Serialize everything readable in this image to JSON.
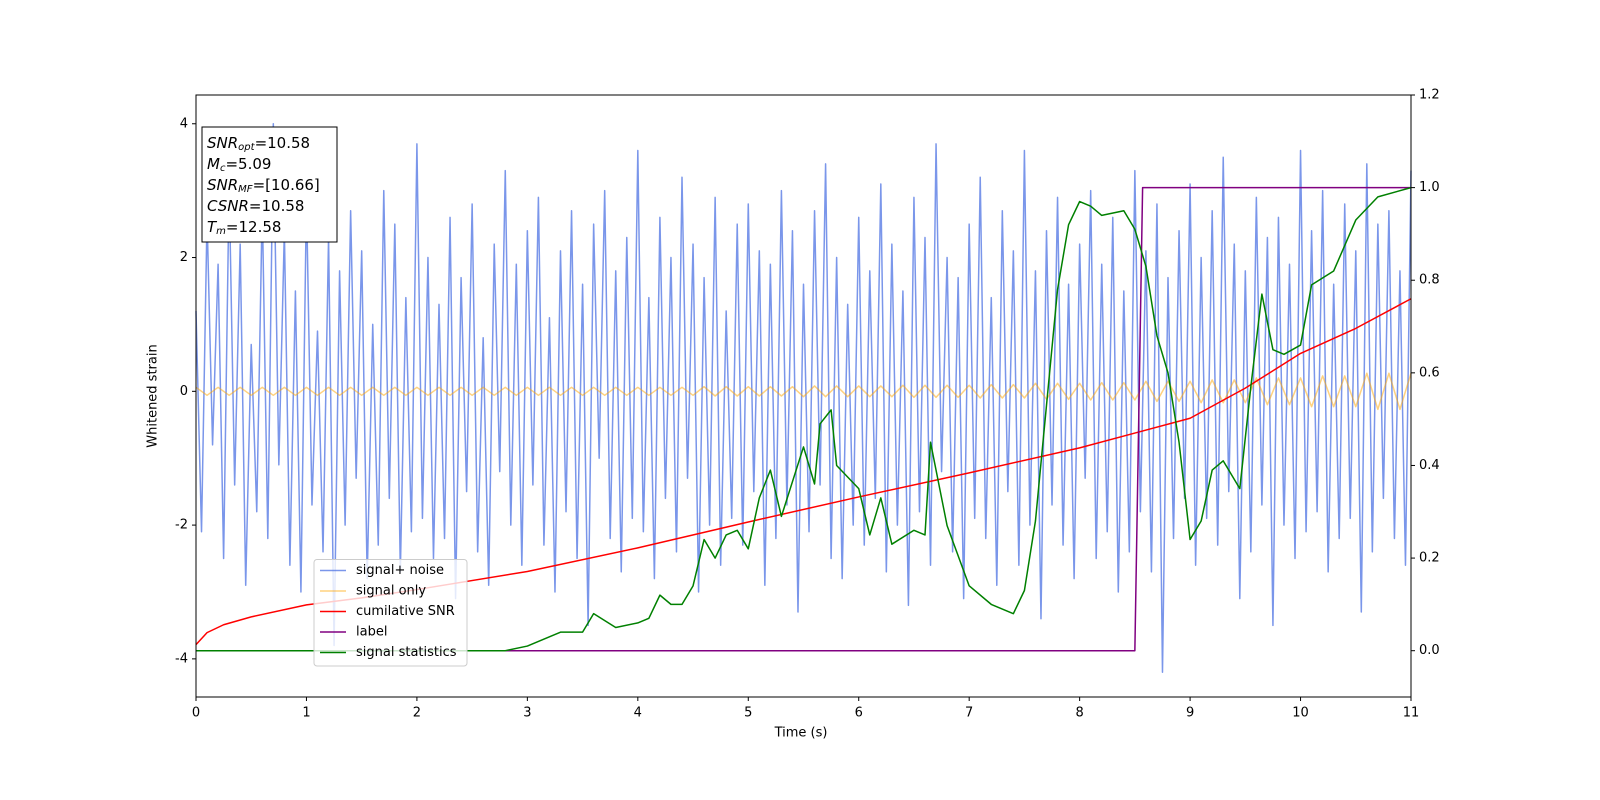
{
  "chart_data": {
    "type": "line",
    "xlabel": "Time (s)",
    "ylabel": "Whitened strain",
    "xlim": [
      0,
      11
    ],
    "ylim": [
      -4.57,
      4.43
    ],
    "y2lim": [
      -0.1,
      1.2
    ],
    "xticks": [
      0,
      1,
      2,
      3,
      4,
      5,
      6,
      7,
      8,
      9,
      10,
      11
    ],
    "yticks": [
      -4,
      -2,
      0,
      2,
      4
    ],
    "y2ticks": [
      {
        "value": 0,
        "label": "0.0"
      },
      {
        "value": 0.2,
        "label": "0.2"
      },
      {
        "value": 0.4,
        "label": "0.4"
      },
      {
        "value": 0.6,
        "label": "0.6"
      },
      {
        "value": 0.8,
        "label": "0.8"
      },
      {
        "value": 1,
        "label": "1.0"
      },
      {
        "value": 1.2,
        "label": "1.2"
      }
    ],
    "legend": "lower left",
    "annotation_lines": [
      {
        "base": "SNR",
        "sub": "opt",
        "text": "=10.58"
      },
      {
        "base": "M",
        "sub": "c",
        "text": "=5.09"
      },
      {
        "base": "SNR",
        "sub": "MF",
        "text": "=[10.66]"
      },
      {
        "base": "CSNR",
        "sub": null,
        "text": "=10.58"
      },
      {
        "base": "T",
        "sub": "m",
        "text": "=12.58"
      }
    ],
    "series": [
      {
        "name": "signal+ noise",
        "color": "#4169e1",
        "axis": "y",
        "x": [
          0,
          0.05,
          0.1,
          0.15,
          0.2,
          0.25,
          0.3,
          0.35,
          0.4,
          0.45,
          0.5,
          0.55,
          0.6,
          0.65,
          0.7,
          0.75,
          0.8,
          0.85,
          0.9,
          0.95,
          1,
          1.05,
          1.1,
          1.15,
          1.2,
          1.25,
          1.3,
          1.35,
          1.4,
          1.45,
          1.5,
          1.55,
          1.6,
          1.65,
          1.7,
          1.75,
          1.8,
          1.85,
          1.9,
          1.95,
          2,
          2.05,
          2.1,
          2.15,
          2.2,
          2.25,
          2.3,
          2.35,
          2.4,
          2.45,
          2.5,
          2.55,
          2.6,
          2.65,
          2.7,
          2.75,
          2.8,
          2.85,
          2.9,
          2.95,
          3,
          3.05,
          3.1,
          3.15,
          3.2,
          3.25,
          3.3,
          3.35,
          3.4,
          3.45,
          3.5,
          3.55,
          3.6,
          3.65,
          3.7,
          3.75,
          3.8,
          3.85,
          3.9,
          3.95,
          4,
          4.05,
          4.1,
          4.15,
          4.2,
          4.25,
          4.3,
          4.35,
          4.4,
          4.45,
          4.5,
          4.55,
          4.6,
          4.65,
          4.7,
          4.75,
          4.8,
          4.85,
          4.9,
          4.95,
          5,
          5.05,
          5.1,
          5.15,
          5.2,
          5.25,
          5.3,
          5.35,
          5.4,
          5.45,
          5.5,
          5.55,
          5.6,
          5.65,
          5.7,
          5.75,
          5.8,
          5.85,
          5.9,
          5.95,
          6,
          6.05,
          6.1,
          6.15,
          6.2,
          6.25,
          6.3,
          6.35,
          6.4,
          6.45,
          6.5,
          6.55,
          6.6,
          6.65,
          6.7,
          6.75,
          6.8,
          6.85,
          6.9,
          6.95,
          7,
          7.05,
          7.1,
          7.15,
          7.2,
          7.25,
          7.3,
          7.35,
          7.4,
          7.45,
          7.5,
          7.55,
          7.6,
          7.65,
          7.7,
          7.75,
          7.8,
          7.85,
          7.9,
          7.95,
          8,
          8.05,
          8.1,
          8.15,
          8.2,
          8.25,
          8.3,
          8.35,
          8.4,
          8.45,
          8.5,
          8.55,
          8.6,
          8.65,
          8.7,
          8.75,
          8.8,
          8.85,
          8.9,
          8.95,
          9,
          9.05,
          9.1,
          9.15,
          9.2,
          9.25,
          9.3,
          9.35,
          9.4,
          9.45,
          9.5,
          9.55,
          9.6,
          9.65,
          9.7,
          9.75,
          9.8,
          9.85,
          9.9,
          9.95,
          10,
          10.05,
          10.1,
          10.15,
          10.2,
          10.25,
          10.3,
          10.35,
          10.4,
          10.45,
          10.5,
          10.55,
          10.6,
          10.65,
          10.7,
          10.75,
          10.8,
          10.85,
          10.9,
          10.95,
          11
        ],
        "values": [
          1.2,
          -2.1,
          2.6,
          -0.8,
          1.9,
          -2.5,
          3.1,
          -1.4,
          2.2,
          -2.9,
          0.7,
          -1.8,
          2.8,
          -2.2,
          4.0,
          -1.1,
          2.4,
          -2.6,
          1.5,
          -3.0,
          2.9,
          -1.7,
          0.9,
          -2.4,
          2.3,
          -3.8,
          1.8,
          -2.0,
          2.7,
          -1.3,
          2.1,
          -2.8,
          1.0,
          -2.3,
          3.0,
          -1.6,
          2.5,
          -2.7,
          1.4,
          -2.1,
          3.7,
          -1.9,
          2.0,
          -2.5,
          1.3,
          -2.2,
          2.6,
          -3.1,
          1.7,
          -1.5,
          2.8,
          -2.4,
          0.8,
          -2.9,
          2.2,
          -1.2,
          3.3,
          -2.0,
          1.9,
          -2.6,
          2.4,
          -1.4,
          2.9,
          -2.3,
          1.1,
          -3.0,
          2.1,
          -1.8,
          2.7,
          -2.5,
          1.6,
          -3.5,
          2.5,
          -1.0,
          3.0,
          -2.2,
          1.8,
          -2.7,
          2.3,
          -1.9,
          3.6,
          -2.1,
          1.4,
          -2.8,
          2.6,
          -1.6,
          2.0,
          -2.4,
          3.2,
          -1.3,
          2.2,
          -3.0,
          1.7,
          -2.0,
          2.9,
          -2.6,
          1.2,
          -1.9,
          2.5,
          -2.3,
          2.8,
          -1.5,
          2.1,
          -2.9,
          1.9,
          -2.2,
          3.0,
          -1.7,
          2.4,
          -3.3,
          1.6,
          -2.1,
          2.7,
          -1.4,
          3.4,
          -2.5,
          2.0,
          -2.8,
          1.3,
          -2.0,
          2.6,
          -2.3,
          1.8,
          -1.6,
          3.1,
          -2.7,
          2.2,
          -2.0,
          1.5,
          -3.2,
          2.9,
          -1.8,
          2.3,
          -2.6,
          3.7,
          -1.2,
          2.0,
          -2.4,
          1.7,
          -3.1,
          2.5,
          -1.9,
          3.2,
          -2.2,
          1.4,
          -2.9,
          2.7,
          -1.5,
          2.1,
          -2.6,
          3.6,
          -2.0,
          1.8,
          -3.4,
          2.4,
          -1.7,
          2.9,
          -2.3,
          1.6,
          -2.8,
          2.2,
          -1.3,
          3.0,
          -2.5,
          1.9,
          -2.1,
          2.6,
          -3.0,
          1.5,
          -2.4,
          3.3,
          -1.8,
          2.1,
          -2.7,
          2.8,
          -4.2,
          1.7,
          -2.2,
          2.4,
          -1.6,
          3.1,
          -2.6,
          2.0,
          -1.9,
          2.7,
          -2.3,
          3.5,
          -1.5,
          2.2,
          -3.1,
          1.8,
          -2.4,
          2.9,
          -1.7,
          2.3,
          -3.5,
          2.6,
          -2.0,
          1.9,
          -2.5,
          3.6,
          -2.1,
          2.4,
          -1.8,
          3.0,
          -2.7,
          1.6,
          -2.2,
          2.8,
          -1.9,
          2.1,
          -3.3,
          3.4,
          -2.4,
          2.5,
          -1.6,
          2.7,
          -2.2,
          1.8,
          -2.6,
          3.3
        ]
      },
      {
        "name": "signal only",
        "color": "#ffa500",
        "axis": "y",
        "x": [
          0,
          0.1,
          0.2,
          0.3,
          0.4,
          0.5,
          0.6,
          0.7,
          0.8,
          0.9,
          1,
          1.1,
          1.2,
          1.3,
          1.4,
          1.5,
          1.6,
          1.7,
          1.8,
          1.9,
          2,
          2.1,
          2.2,
          2.3,
          2.4,
          2.5,
          2.6,
          2.7,
          2.8,
          2.9,
          3,
          3.1,
          3.2,
          3.3,
          3.4,
          3.5,
          3.6,
          3.7,
          3.8,
          3.9,
          4,
          4.1,
          4.2,
          4.3,
          4.4,
          4.5,
          4.6,
          4.7,
          4.8,
          4.9,
          5,
          5.1,
          5.2,
          5.3,
          5.4,
          5.5,
          5.6,
          5.7,
          5.8,
          5.9,
          6,
          6.1,
          6.2,
          6.3,
          6.4,
          6.5,
          6.6,
          6.7,
          6.8,
          6.9,
          7,
          7.1,
          7.2,
          7.3,
          7.4,
          7.5,
          7.6,
          7.7,
          7.8,
          7.9,
          8,
          8.1,
          8.2,
          8.3,
          8.4,
          8.5,
          8.6,
          8.7,
          8.8,
          8.9,
          9,
          9.1,
          9.2,
          9.3,
          9.4,
          9.5,
          9.6,
          9.7,
          9.8,
          9.9,
          10,
          10.1,
          10.2,
          10.3,
          10.4,
          10.5,
          10.6,
          10.7,
          10.8,
          10.9,
          11
        ],
        "values": [
          0.06,
          -0.06,
          0.06,
          -0.06,
          0.06,
          -0.06,
          0.06,
          -0.06,
          0.06,
          -0.06,
          0.06,
          -0.06,
          0.06,
          -0.06,
          0.06,
          -0.06,
          0.06,
          -0.06,
          0.06,
          -0.06,
          0.06,
          -0.06,
          0.06,
          -0.06,
          0.06,
          -0.06,
          0.06,
          -0.06,
          0.06,
          -0.06,
          0.06,
          -0.06,
          0.06,
          -0.06,
          0.06,
          -0.06,
          0.06,
          -0.06,
          0.06,
          -0.06,
          0.06,
          -0.06,
          0.06,
          -0.06,
          0.06,
          -0.06,
          0.07,
          -0.07,
          0.07,
          -0.07,
          0.07,
          -0.07,
          0.07,
          -0.07,
          0.07,
          -0.08,
          0.08,
          -0.08,
          0.08,
          -0.08,
          0.08,
          -0.08,
          0.08,
          -0.08,
          0.09,
          -0.09,
          0.09,
          -0.09,
          0.09,
          -0.09,
          0.09,
          -0.1,
          0.1,
          -0.1,
          0.1,
          -0.1,
          0.12,
          -0.12,
          0.12,
          -0.12,
          0.12,
          -0.13,
          0.13,
          -0.13,
          0.13,
          -0.13,
          0.15,
          -0.15,
          0.15,
          -0.15,
          0.15,
          -0.17,
          0.17,
          -0.17,
          0.17,
          -0.17,
          0.2,
          -0.2,
          0.2,
          -0.2,
          0.2,
          -0.23,
          0.23,
          -0.23,
          0.23,
          -0.23,
          0.27,
          -0.27,
          0.27,
          -0.27,
          0.27
        ]
      },
      {
        "name": "cumilative SNR",
        "color": "#ff0000",
        "axis": "y2",
        "x": [
          0,
          0.1,
          0.25,
          0.5,
          1,
          1.5,
          2,
          3,
          4,
          5,
          6,
          7,
          8,
          8.5,
          9,
          9.5,
          10,
          10.5,
          11
        ],
        "values": [
          0.013,
          0.039,
          0.056,
          0.073,
          0.099,
          0.114,
          0.132,
          0.171,
          0.222,
          0.278,
          0.332,
          0.384,
          0.438,
          0.47,
          0.502,
          0.567,
          0.642,
          0.696,
          0.76
        ]
      },
      {
        "name": "label",
        "color": "#800080",
        "axis": "y2",
        "x": [
          0,
          8.5,
          8.57,
          11
        ],
        "values": [
          0,
          0,
          1,
          1
        ]
      },
      {
        "name": "signal statistics",
        "color": "#008000",
        "axis": "y2",
        "x": [
          0,
          1,
          2,
          2.8,
          3,
          3.3,
          3.5,
          3.6,
          3.8,
          4,
          4.1,
          4.2,
          4.3,
          4.4,
          4.5,
          4.6,
          4.7,
          4.8,
          4.9,
          5,
          5.1,
          5.2,
          5.3,
          5.5,
          5.6,
          5.65,
          5.75,
          5.8,
          6,
          6.1,
          6.2,
          6.3,
          6.5,
          6.6,
          6.65,
          6.8,
          7,
          7.2,
          7.4,
          7.5,
          7.6,
          7.7,
          7.8,
          7.9,
          8,
          8.1,
          8.2,
          8.4,
          8.5,
          8.6,
          8.7,
          8.8,
          8.9,
          9,
          9.1,
          9.2,
          9.3,
          9.45,
          9.55,
          9.65,
          9.75,
          9.85,
          10,
          10.1,
          10.3,
          10.5,
          10.7,
          11
        ],
        "values": [
          0,
          0,
          0,
          0,
          0.01,
          0.04,
          0.04,
          0.08,
          0.05,
          0.06,
          0.07,
          0.12,
          0.1,
          0.1,
          0.14,
          0.24,
          0.2,
          0.25,
          0.26,
          0.22,
          0.33,
          0.39,
          0.29,
          0.44,
          0.36,
          0.49,
          0.52,
          0.4,
          0.35,
          0.25,
          0.33,
          0.23,
          0.26,
          0.25,
          0.45,
          0.27,
          0.14,
          0.1,
          0.08,
          0.13,
          0.28,
          0.53,
          0.78,
          0.92,
          0.97,
          0.96,
          0.94,
          0.95,
          0.91,
          0.83,
          0.68,
          0.6,
          0.45,
          0.24,
          0.28,
          0.39,
          0.41,
          0.35,
          0.57,
          0.77,
          0.65,
          0.64,
          0.66,
          0.79,
          0.82,
          0.93,
          0.98,
          1.0
        ]
      }
    ]
  }
}
